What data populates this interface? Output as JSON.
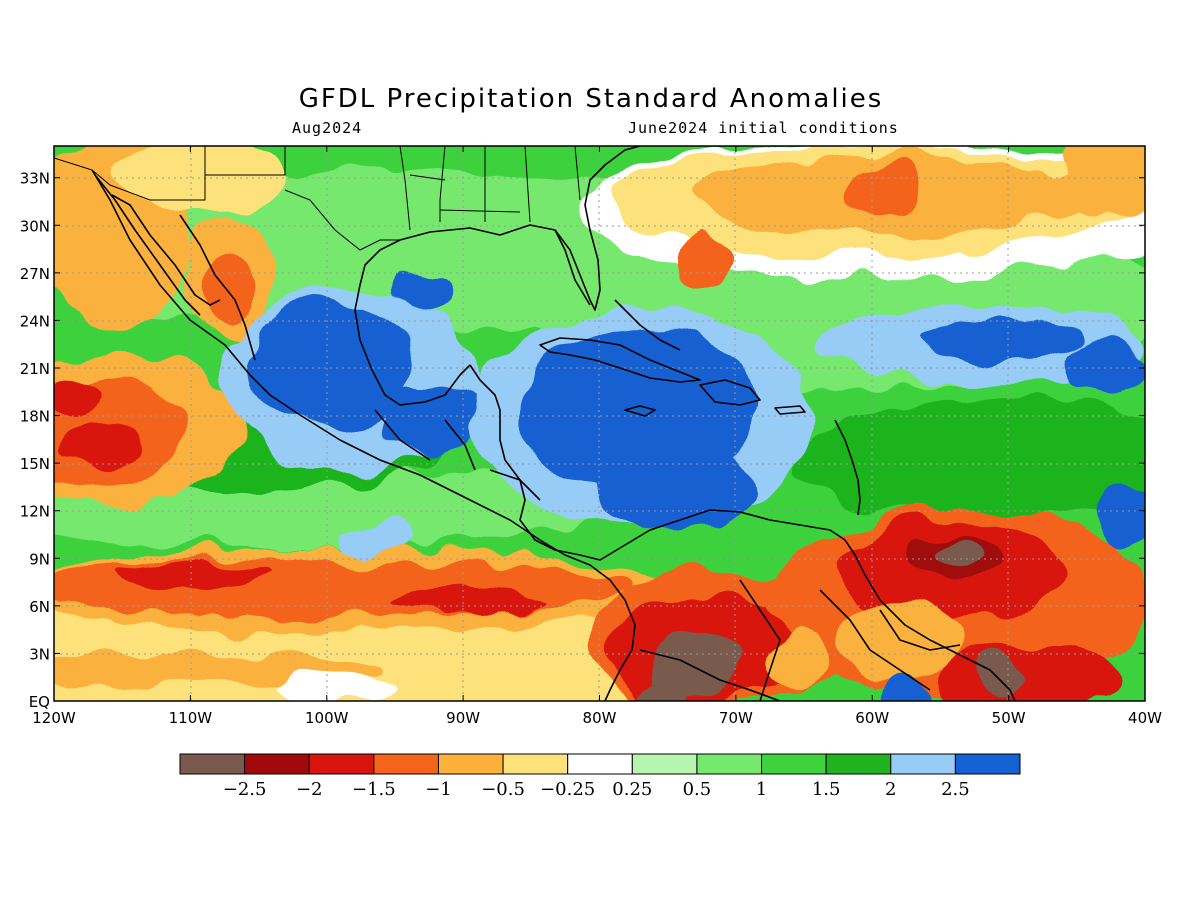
{
  "title": "GFDL Precipitation Standard Anomalies",
  "subtitle_left": "Aug2024",
  "subtitle_right": "June2024 initial conditions",
  "map": {
    "lon_range": [
      -120,
      -40
    ],
    "lat_range": [
      0,
      35
    ],
    "x_tick_labels": [
      "120W",
      "110W",
      "100W",
      "90W",
      "80W",
      "70W",
      "60W",
      "50W",
      "40W"
    ],
    "y_tick_labels": [
      "EQ",
      "3N",
      "6N",
      "9N",
      "12N",
      "15N",
      "18N",
      "21N",
      "24N",
      "27N",
      "30N",
      "33N"
    ]
  },
  "colorbar": {
    "colors": [
      "#7a5a4e",
      "#a00a0a",
      "#d8140e",
      "#f4641a",
      "#fbb13c",
      "#fde27c",
      "#ffffff",
      "#b6f5ad",
      "#76e86e",
      "#3ed23e",
      "#1fb41f",
      "#96ccf5",
      "#1560d2"
    ],
    "labels": [
      "-2.5",
      "-2",
      "-1.5",
      "-1",
      "-0.5",
      "-0.25",
      "0.25",
      "0.5",
      "1",
      "1.5",
      "2",
      "2.5"
    ]
  }
}
